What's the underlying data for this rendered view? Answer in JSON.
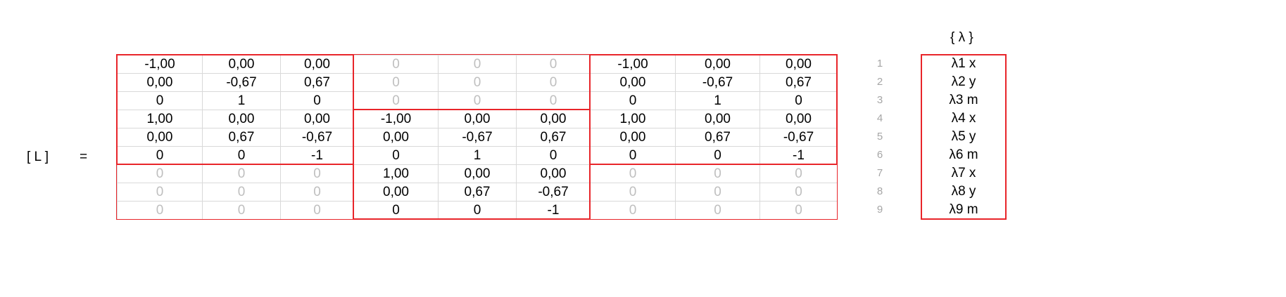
{
  "matrix_label": "[ L ]",
  "equals_sign": "=",
  "lambda_header": "{ λ }",
  "matrix": [
    [
      "-1,00",
      "0,00",
      "0,00",
      "0",
      "0",
      "0",
      "-1,00",
      "0,00",
      "0,00"
    ],
    [
      "0,00",
      "-0,67",
      "0,67",
      "0",
      "0",
      "0",
      "0,00",
      "-0,67",
      "0,67"
    ],
    [
      "0",
      "1",
      "0",
      "0",
      "0",
      "0",
      "0",
      "1",
      "0"
    ],
    [
      "1,00",
      "0,00",
      "0,00",
      "-1,00",
      "0,00",
      "0,00",
      "1,00",
      "0,00",
      "0,00"
    ],
    [
      "0,00",
      "0,67",
      "-0,67",
      "0,00",
      "-0,67",
      "0,67",
      "0,00",
      "0,67",
      "-0,67"
    ],
    [
      "0",
      "0",
      "-1",
      "0",
      "1",
      "0",
      "0",
      "0",
      "-1"
    ],
    [
      "0",
      "0",
      "0",
      "1,00",
      "0,00",
      "0,00",
      "0",
      "0",
      "0"
    ],
    [
      "0",
      "0",
      "0",
      "0,00",
      "0,67",
      "-0,67",
      "0",
      "0",
      "0"
    ],
    [
      "0",
      "0",
      "0",
      "0",
      "0",
      "-1",
      "0",
      "0",
      "0"
    ]
  ],
  "row_numbers": [
    "1",
    "2",
    "3",
    "4",
    "5",
    "6",
    "7",
    "8",
    "9"
  ],
  "lambda": [
    "λ1 x",
    "λ2 y",
    "λ3 m",
    "λ4 x",
    "λ5 y",
    "λ6 m",
    "λ7 x",
    "λ8 y",
    "λ9 m"
  ],
  "colors": {
    "block_border": "#e8252a",
    "grid_line": "#d9d9d9",
    "zero_text": "#bfbfbf",
    "text": "#000000"
  }
}
